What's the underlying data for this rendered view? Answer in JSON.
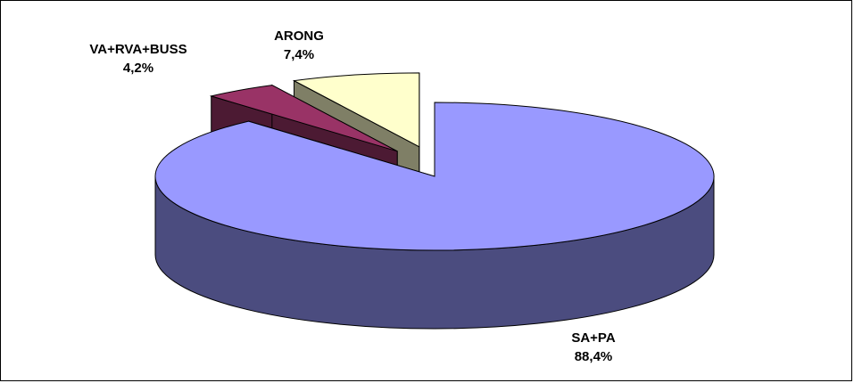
{
  "chart_data": {
    "type": "pie",
    "style": "3d-exploded",
    "title": "",
    "slices": [
      {
        "name": "SA+PA",
        "value": 88.4,
        "label": "88,4%",
        "color": "#9999FF",
        "side_color": "#4B4C7F",
        "exploded": false
      },
      {
        "name": "VA+RVA+BUSS",
        "value": 4.2,
        "label": "4,2%",
        "color": "#993366",
        "side_color": "#4C1A33",
        "exploded": true
      },
      {
        "name": "ARONG",
        "value": 7.4,
        "label": "7,4%",
        "color": "#FFFFCC",
        "side_color": "#7F7F66",
        "exploded": true
      }
    ],
    "legend": "none",
    "data_labels": "name-and-percent"
  }
}
